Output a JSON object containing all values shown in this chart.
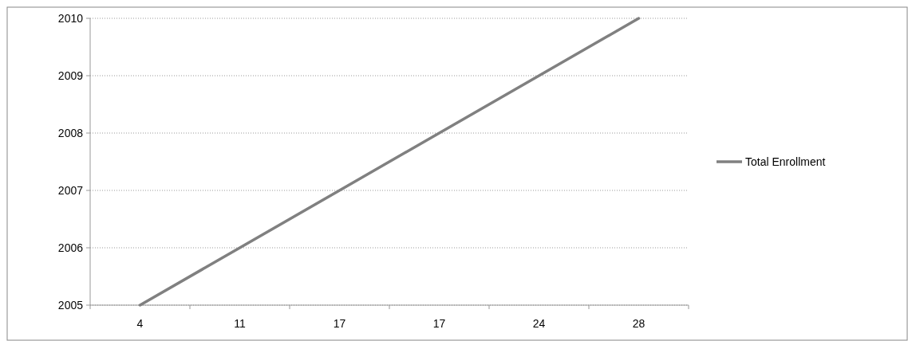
{
  "chart_data": {
    "type": "line",
    "categories": [
      "4",
      "11",
      "17",
      "17",
      "24",
      "28"
    ],
    "series": [
      {
        "name": "Total Enrollment",
        "color": "#808080",
        "values": [
          2005,
          2006,
          2007,
          2008,
          2009,
          2010
        ]
      }
    ],
    "ylim": [
      2005,
      2010
    ],
    "yticks": [
      2005,
      2006,
      2007,
      2008,
      2009,
      2010
    ],
    "grid": "y",
    "legend": "right",
    "marker": "none",
    "line_style": "solid"
  }
}
